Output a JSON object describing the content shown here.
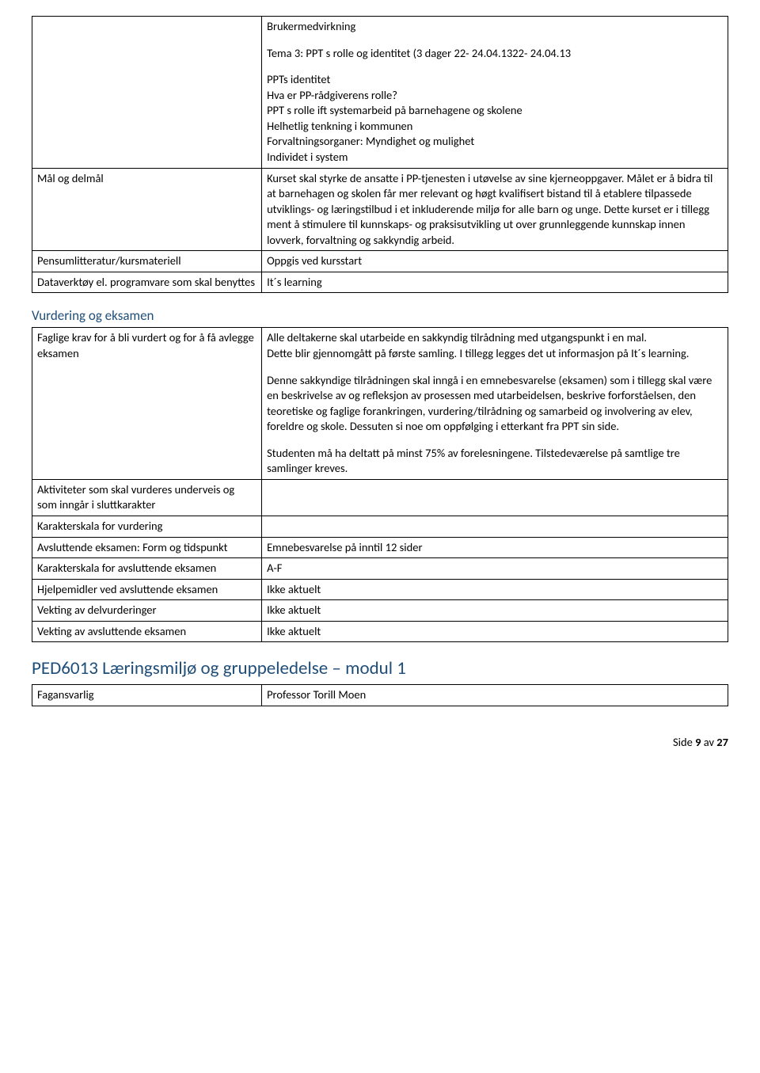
{
  "table1": {
    "row0": {
      "brukermedvirkning": "Brukermedvirkning",
      "tema3": "Tema 3: PPT s rolle og identitet (3 dager 22- 24.04.1322- 24.04.13",
      "ppts_identitet": "PPTs identitet",
      "hva_er": "Hva er PP-rådgiverens rolle?",
      "ppt_rolle": "PPT s rolle ift systemarbeid på barnehagene og skolene",
      "helhetlig": "Helhetlig tenkning i kommunen",
      "forvaltning": "Forvaltningsorganer: Myndighet og mulighet",
      "individ": "Individet i system"
    },
    "row1": {
      "label": "Mål og delmål",
      "value": "Kurset skal styrke de ansatte i PP-tjenesten i utøvelse av sine kjerneoppgaver. Målet er å bidra til at barnehagen og skolen får mer relevant og høgt kvalifisert bistand til å etablere tilpassede utviklings- og læringstilbud i et inkluderende miljø for alle barn og unge. Dette kurset er i tillegg ment å stimulere til kunnskaps- og praksisutvikling ut over grunnleggende kunnskap innen lovverk, forvaltning og sakkyndig arbeid."
    },
    "row2": {
      "label": "Pensumlitteratur/kursmateriell",
      "value": "Oppgis ved kursstart"
    },
    "row3": {
      "label": "Dataverktøy el. programvare som skal benyttes",
      "value": "It´s learning"
    }
  },
  "section_heading_1": "Vurdering og eksamen",
  "table2": {
    "row0": {
      "label": "Faglige krav for å bli vurdert og for å få avlegge eksamen",
      "p1": "Alle deltakerne skal utarbeide en sakkyndig tilrådning med utgangspunkt i en mal.",
      "p2": "Dette blir gjennomgått på første samling. I tillegg legges det ut informasjon på It´s learning.",
      "p3": "Denne sakkyndige tilrådningen skal inngå i en emnebesvarelse (eksamen) som i tillegg skal være en beskrivelse av og refleksjon av prosessen med utarbeidelsen, beskrive forforståelsen, den teoretiske og faglige forankringen, vurdering/tilrådning og samarbeid og involvering av elev, foreldre og skole. Dessuten si noe om oppfølging i etterkant fra PPT sin side.",
      "p4": "Studenten må ha deltatt på minst 75% av forelesningene. Tilstedeværelse på samtlige tre samlinger kreves."
    },
    "row1": {
      "label": "Aktiviteter som skal vurderes underveis og som inngår i sluttkarakter",
      "value": ""
    },
    "row2": {
      "label": "Karakterskala for vurdering",
      "value": ""
    },
    "row3": {
      "label": "Avsluttende eksamen: Form og tidspunkt",
      "value": "Emnebesvarelse på inntil 12 sider"
    },
    "row4": {
      "label": "Karakterskala for avsluttende eksamen",
      "value": "A-F"
    },
    "row5": {
      "label": "Hjelpemidler ved avsluttende eksamen",
      "value": "Ikke aktuelt"
    },
    "row6": {
      "label": "Vekting av delvurderinger",
      "value": "Ikke aktuelt"
    },
    "row7": {
      "label": "Vekting av avsluttende eksamen",
      "value": "Ikke aktuelt"
    }
  },
  "module_heading": "PED6013 Læringsmiljø og gruppeledelse – modul 1",
  "table3": {
    "row0": {
      "label": "Fagansvarlig",
      "value": "Professor Torill Moen"
    }
  },
  "footer": {
    "prefix": "Side ",
    "page": "9",
    "middle": " av ",
    "total": "27"
  }
}
